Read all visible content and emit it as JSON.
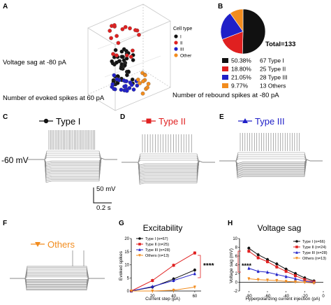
{
  "panels": {
    "A": "A",
    "B": "B",
    "C": "C",
    "D": "D",
    "E": "E",
    "F": "F",
    "G": "G",
    "H": "H"
  },
  "colors": {
    "type1": "#111111",
    "type2": "#e02020",
    "type3": "#2020c8",
    "others": "#f28c1e",
    "trace": "#8a8a8a"
  },
  "panel_a": {
    "axis_sag": "Voltage sag at -80 pA",
    "axis_evoked": "Number of evoked spikes at 60 pA",
    "axis_rebound": "Number of rebound spikes at -80 pA",
    "legend_title": "Cell type",
    "legend": [
      "I",
      "II",
      "III",
      "Other"
    ]
  },
  "ephys": {
    "resting_label": "-60 mV",
    "type1_label": "Type I",
    "type2_label": "Type II",
    "type3_label": "Type III",
    "others_label": "Others",
    "scale_v": "50 mV",
    "scale_t": "0.2 s"
  },
  "chart_data": [
    {
      "type": "pie",
      "panel": "B",
      "total_label": "Total=133",
      "slices": [
        {
          "percent": "50.38%",
          "count_label": "67 Type I",
          "value": 67,
          "color": "#111111"
        },
        {
          "percent": "18.80%",
          "count_label": "25 Type II",
          "value": 25,
          "color": "#e02020"
        },
        {
          "percent": "21.05%",
          "count_label": "28 Type III",
          "value": 28,
          "color": "#2020c8"
        },
        {
          "percent": "9.77%",
          "count_label": "13 Others",
          "value": 13,
          "color": "#f28c1e"
        }
      ]
    },
    {
      "type": "line",
      "panel": "G",
      "title": "Excitability",
      "xlabel": "Current step (pA)",
      "ylabel": "Evoked spikes",
      "x": [
        0,
        20,
        40,
        60
      ],
      "xticks": [
        20,
        40,
        60
      ],
      "yticks": [
        0,
        5,
        10,
        15,
        20
      ],
      "xlim": [
        0,
        66
      ],
      "ylim": [
        0,
        20
      ],
      "significance": "****",
      "series": [
        {
          "name": "Type I (n=67)",
          "color": "#111111",
          "marker": "circle",
          "values": [
            0,
            1.5,
            4.6,
            8.0
          ]
        },
        {
          "name": "Type II (n=25)",
          "color": "#e02020",
          "marker": "square",
          "values": [
            0,
            4.0,
            9.8,
            14.5
          ]
        },
        {
          "name": "Type III (n=28)",
          "color": "#2020c8",
          "marker": "triangle",
          "values": [
            0,
            1.7,
            4.0,
            6.6
          ]
        },
        {
          "name": "Others (n=13)",
          "color": "#f28c1e",
          "marker": "triangle-down",
          "values": [
            0,
            0.0,
            0.3,
            1.5
          ]
        }
      ]
    },
    {
      "type": "line",
      "panel": "H",
      "title": "Voltage sag",
      "xlabel": "Hyperpolarizing current injection (pA)",
      "ylabel": "Voltage sag (mV)",
      "x": [
        -80,
        -70,
        -60,
        -50,
        -40,
        -30,
        -20,
        -10
      ],
      "xticks": [
        -80,
        -60,
        -40,
        -20,
        0
      ],
      "yticks": [
        -2,
        0,
        2,
        4,
        6,
        8,
        10
      ],
      "xlim": [
        -90,
        0
      ],
      "ylim": [
        -2,
        10
      ],
      "significance": "****",
      "series": [
        {
          "name": "Type I (n=66)",
          "color": "#111111",
          "marker": "circle",
          "values": [
            7.8,
            6.3,
            5.2,
            4.2,
            3.0,
            2.0,
            1.0,
            0.3
          ]
        },
        {
          "name": "Type II (n=24)",
          "color": "#e02020",
          "marker": "square",
          "values": [
            7.1,
            5.6,
            4.7,
            3.5,
            2.5,
            1.5,
            0.6,
            0.1
          ]
        },
        {
          "name": "Type III (n=28)",
          "color": "#2020c8",
          "marker": "triangle",
          "values": [
            3.2,
            2.5,
            2.3,
            1.8,
            1.3,
            0.8,
            0.2,
            0.0
          ]
        },
        {
          "name": "Others (n=13)",
          "color": "#f28c1e",
          "marker": "triangle-down",
          "values": [
            0.8,
            0.6,
            0.5,
            0.4,
            0.2,
            0.1,
            0.0,
            -0.2
          ]
        }
      ]
    }
  ]
}
